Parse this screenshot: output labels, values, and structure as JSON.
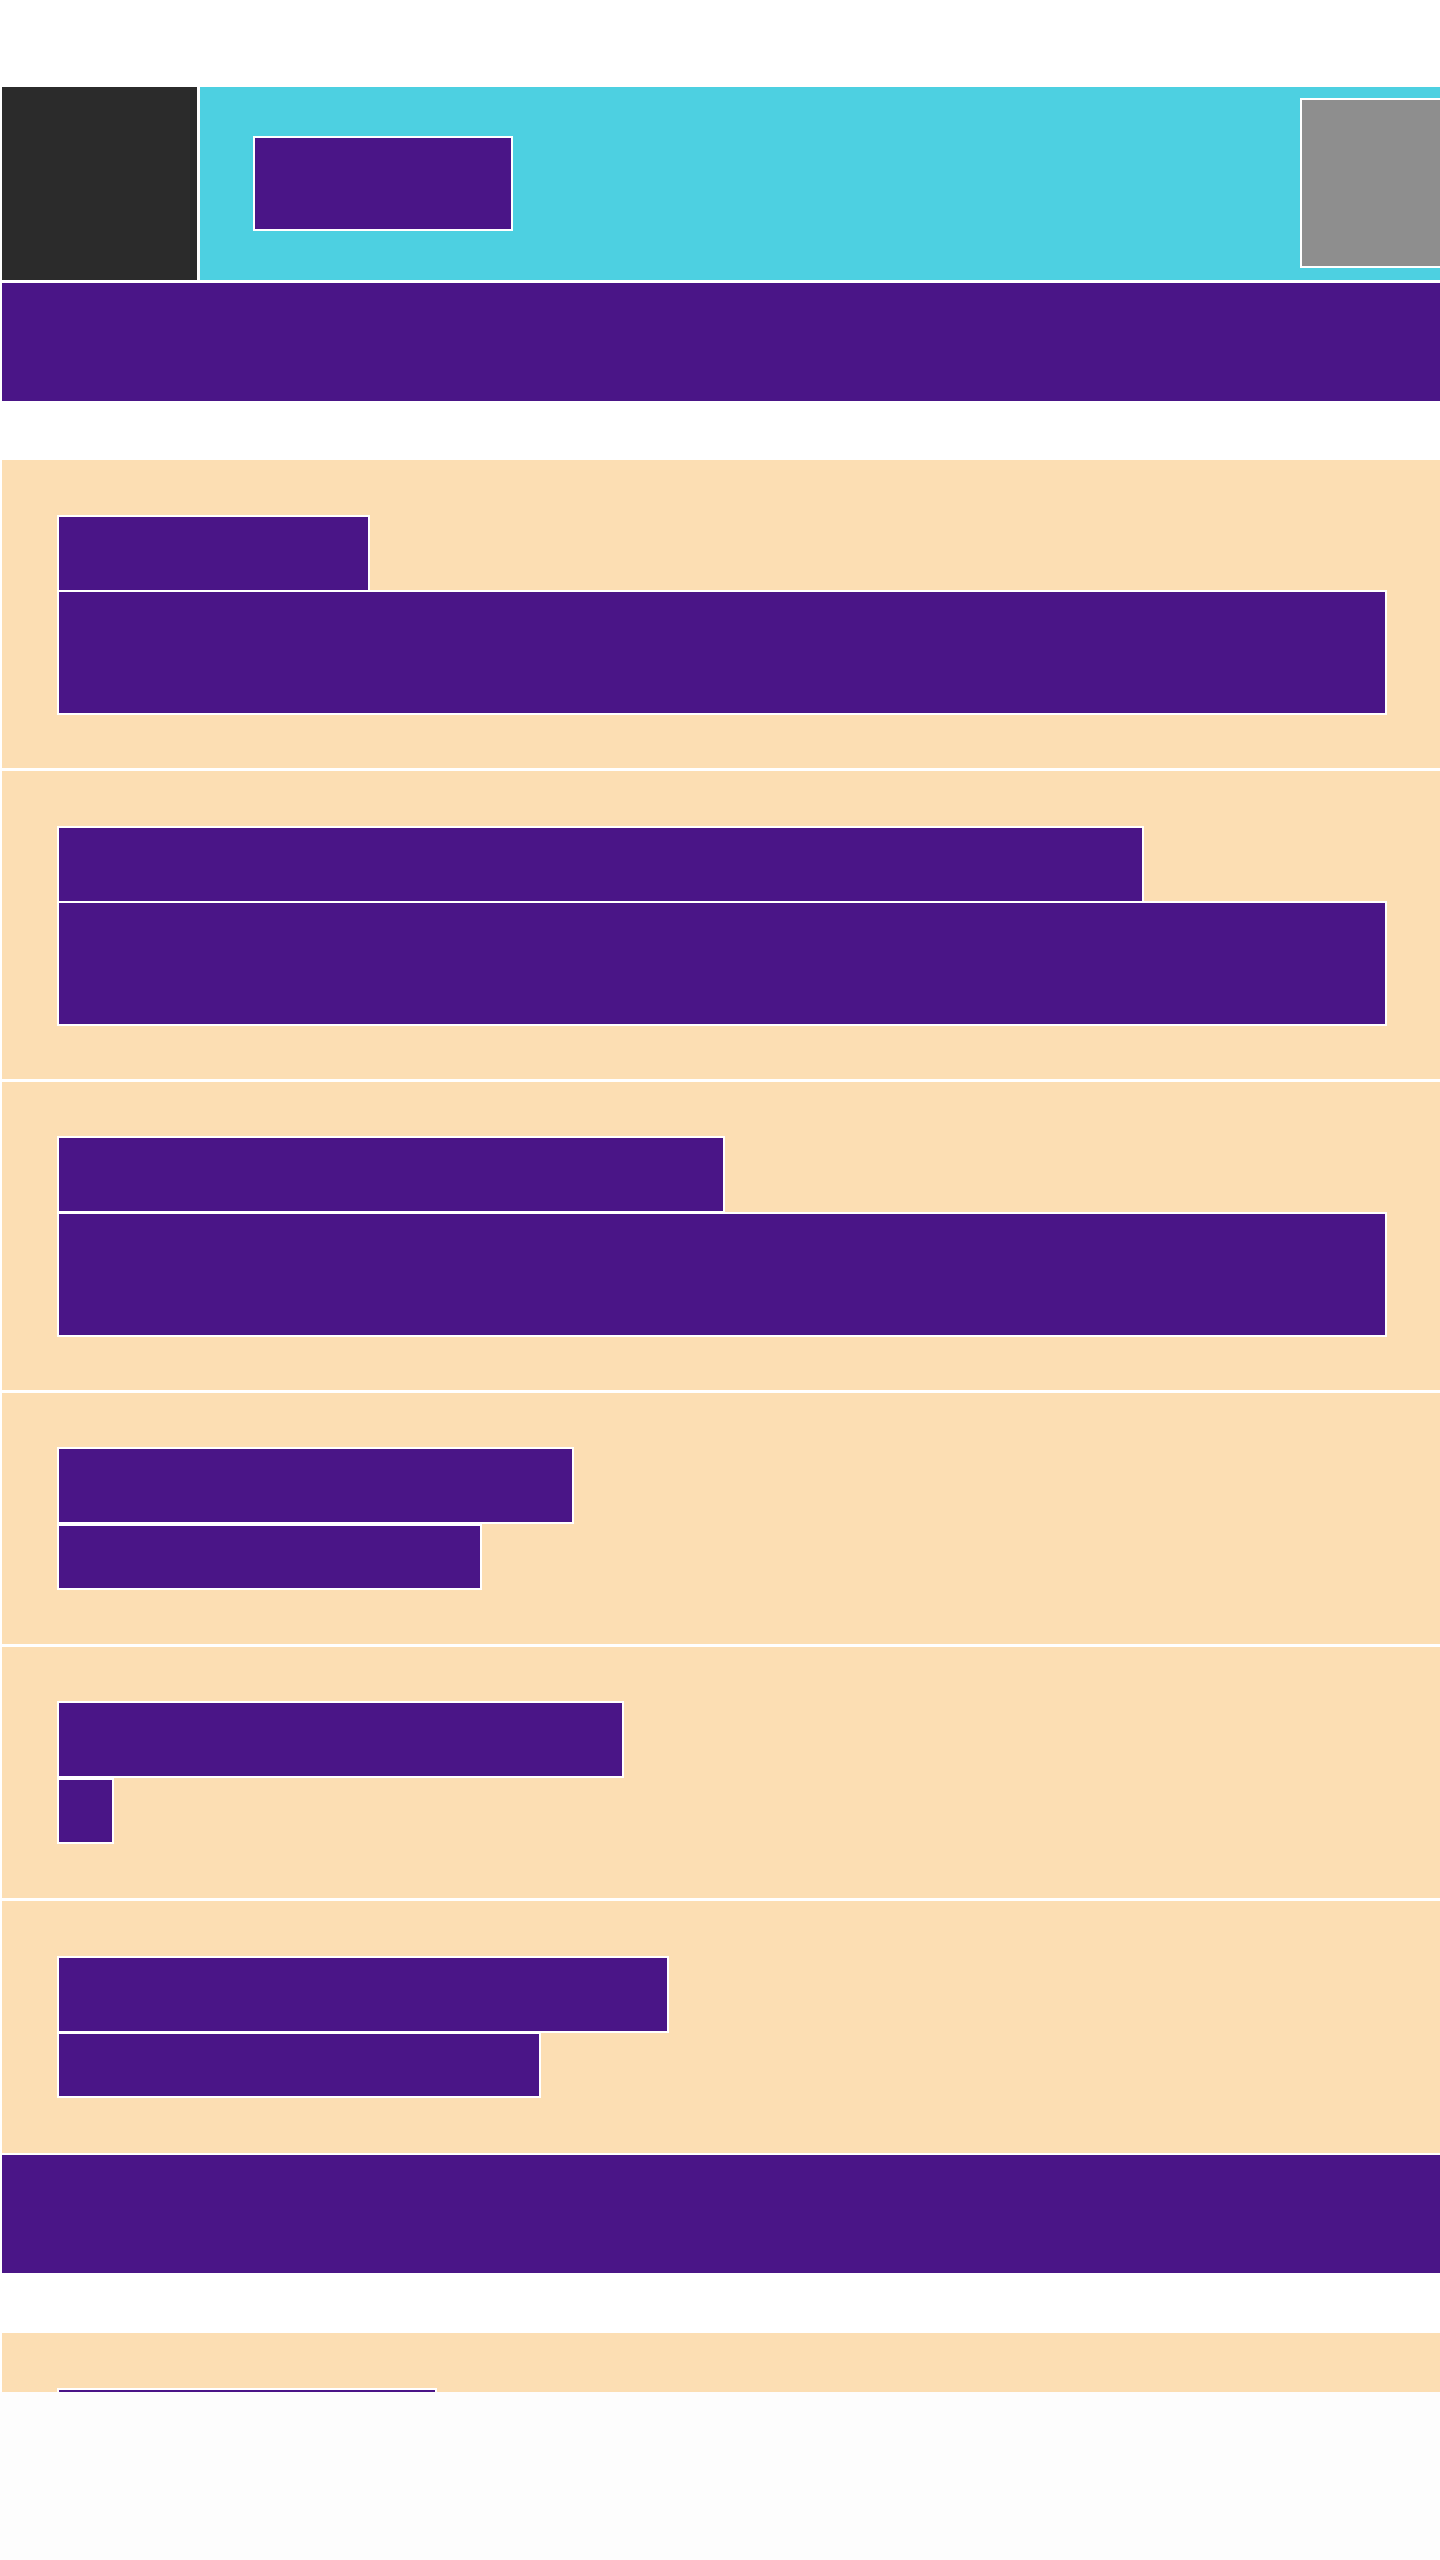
{
  "header": {
    "logo": "",
    "title": "",
    "avatar": ""
  },
  "sections": [
    {
      "heading": "",
      "fields": [
        {
          "label": "",
          "value": ""
        },
        {
          "label": "",
          "value": ""
        },
        {
          "label": "",
          "value": ""
        },
        {
          "label": "",
          "value": ""
        },
        {
          "label": "",
          "value": ""
        },
        {
          "label": "",
          "value": ""
        }
      ]
    },
    {
      "heading": "",
      "fields": [
        {
          "label": "",
          "value": ""
        }
      ]
    }
  ],
  "colors": {
    "header_background": "#4dd0e1",
    "logo_background": "#2b2b2b",
    "accent_purple": "#4a1587",
    "card_background": "#fcdeb3",
    "avatar_placeholder": "#8e8e8e"
  }
}
